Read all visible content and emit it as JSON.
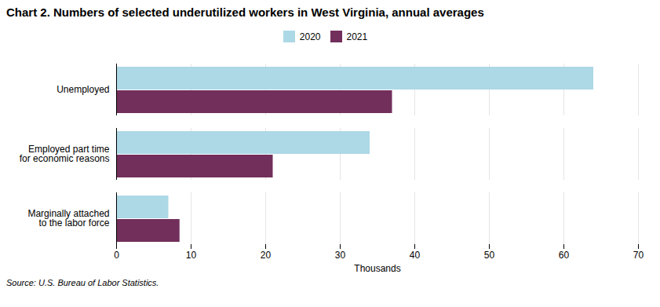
{
  "chart_data": {
    "type": "bar",
    "orientation": "horizontal",
    "title": "Chart 2. Numbers of selected underutilized workers in West Virginia, annual averages",
    "categories": [
      "Unemployed",
      "Employed part time\nfor economic reasons",
      "Marginally attached\nto the labor force"
    ],
    "series": [
      {
        "name": "2020",
        "color": "#add8e6",
        "values": [
          64,
          34,
          7
        ]
      },
      {
        "name": "2021",
        "color": "#722F5B",
        "values": [
          37,
          21,
          8.5
        ]
      }
    ],
    "xlim": [
      0,
      70
    ],
    "xticks": [
      0,
      10,
      20,
      30,
      40,
      50,
      60,
      70
    ],
    "xlabel": "Thousands",
    "grid": true,
    "legend": "top",
    "annotations": [
      "Source: U.S. Bureau of Labor Statistics."
    ]
  }
}
